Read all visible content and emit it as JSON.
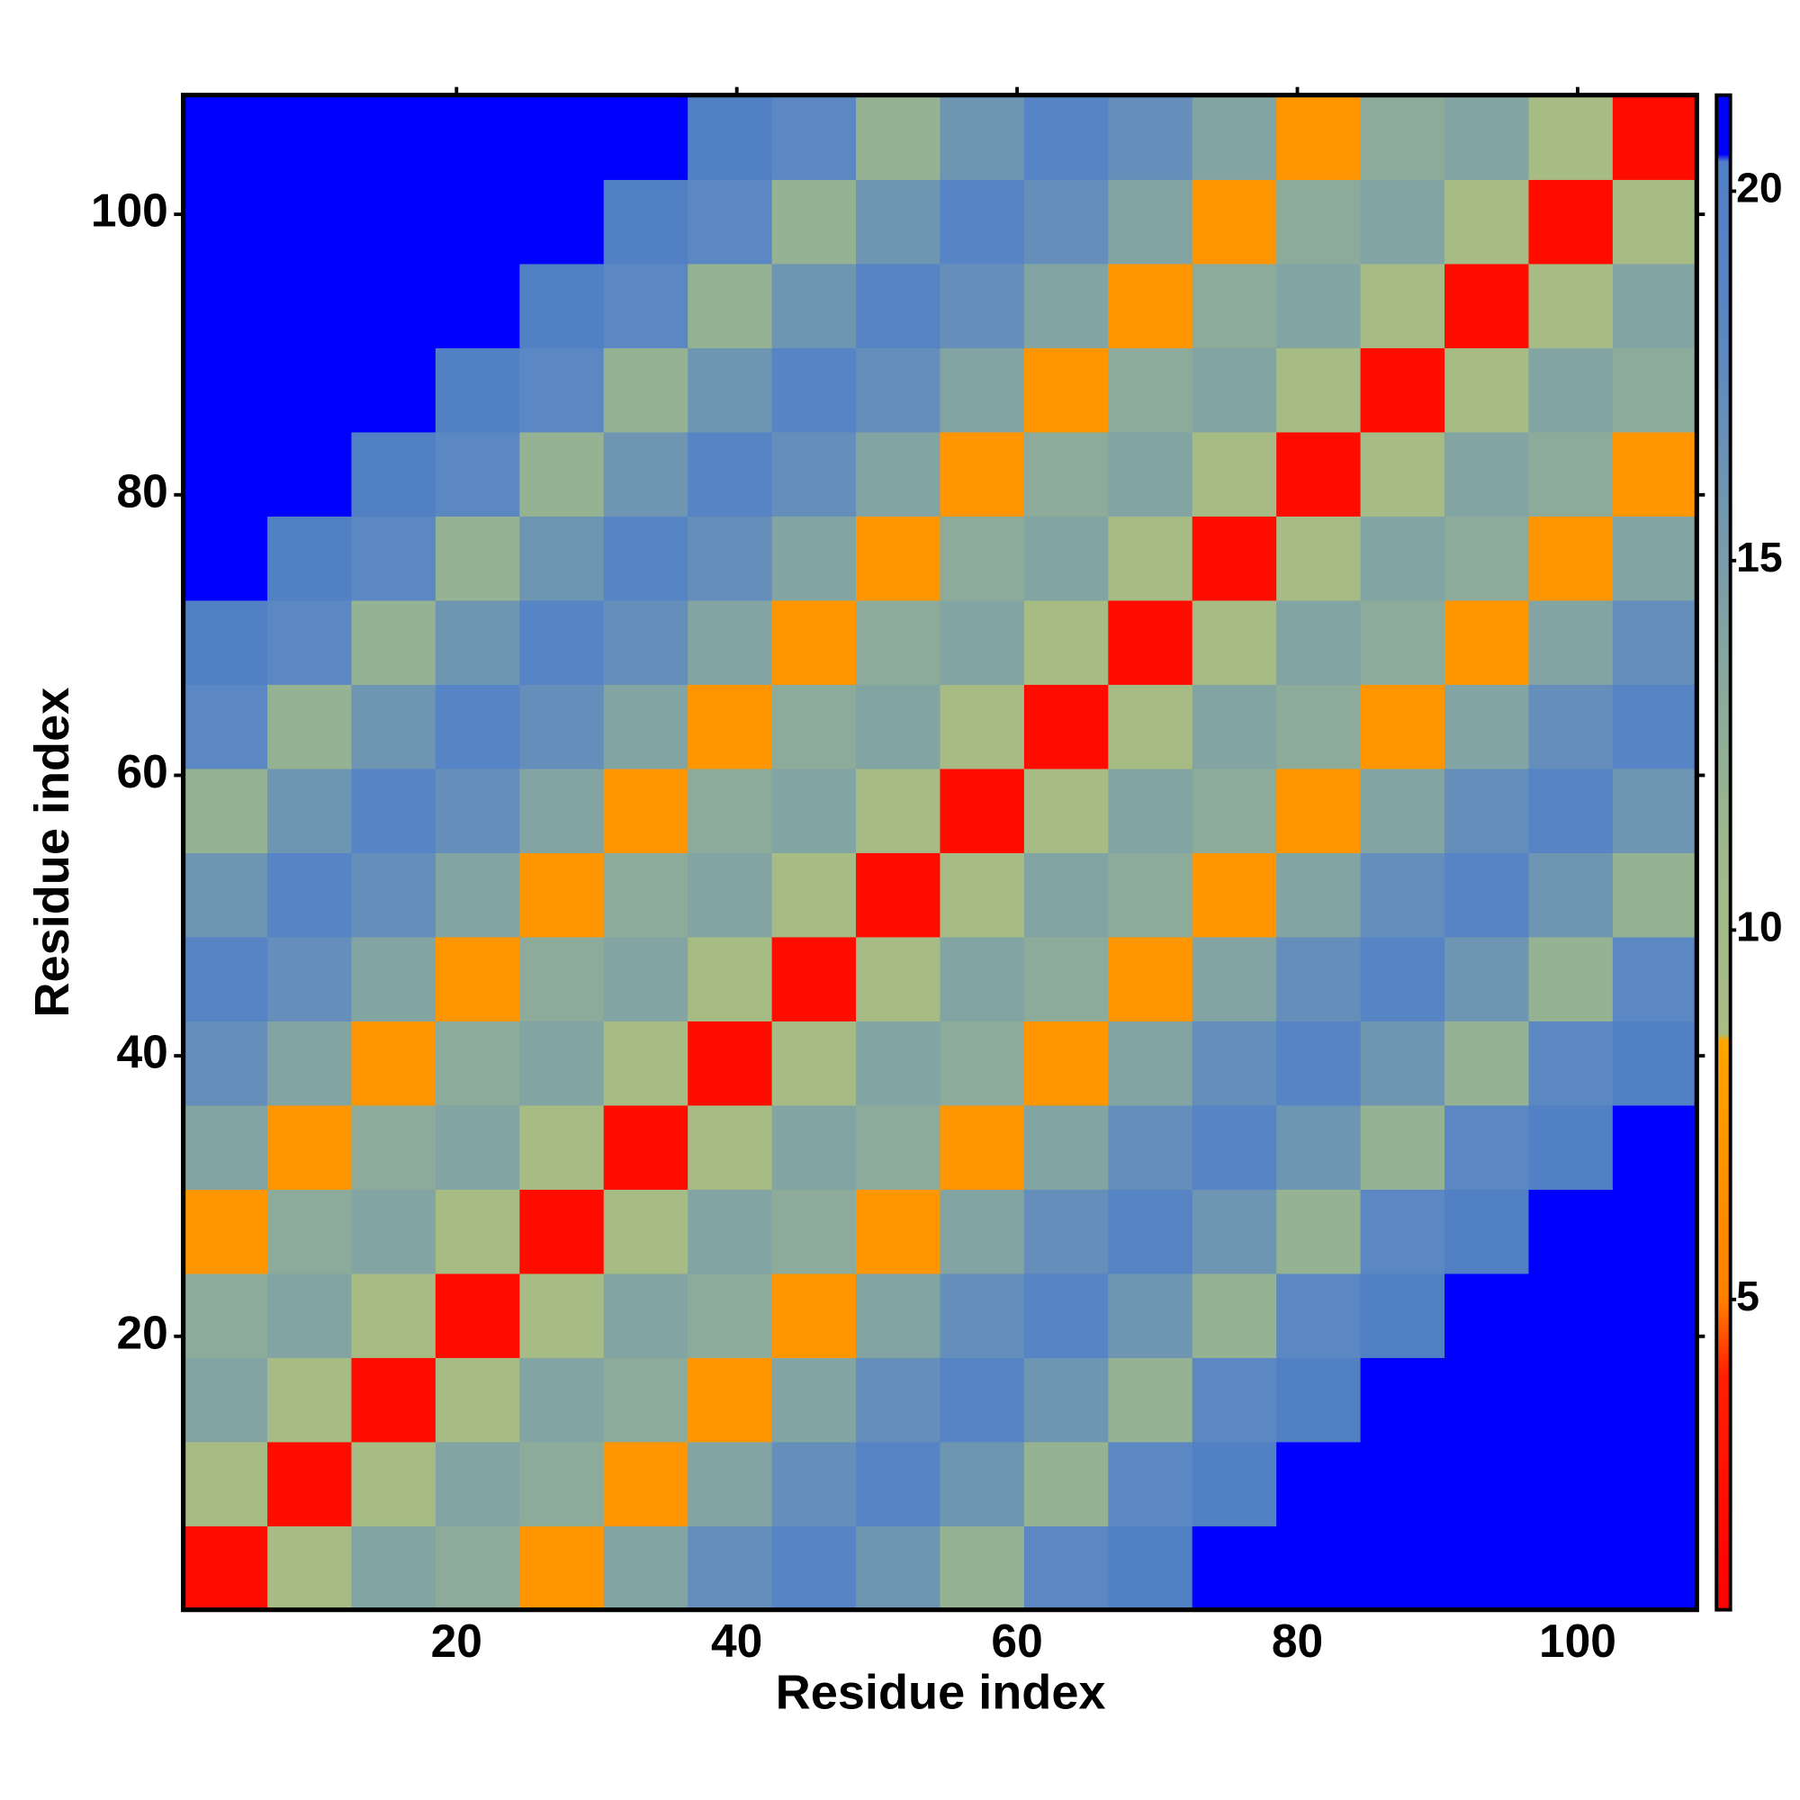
{
  "chart_data": {
    "type": "heatmap",
    "xlabel": "Residue index",
    "ylabel": "Residue index",
    "xlim": [
      0.5,
      108.5
    ],
    "ylim": [
      0.5,
      108.5
    ],
    "xticks": [
      20,
      40,
      60,
      80,
      100
    ],
    "yticks": [
      20,
      40,
      60,
      80,
      100
    ],
    "xbins": [
      0.5,
      6.5,
      12.5,
      18.5,
      24.5,
      30.5,
      36.5,
      42.5,
      48.5,
      54.5,
      60.5,
      66.5,
      72.5,
      78.5,
      84.5,
      90.5,
      96.5,
      102.5,
      108.5
    ],
    "ybins": [
      0.5,
      6.5,
      12.5,
      18.5,
      24.5,
      30.5,
      36.5,
      42.5,
      48.5,
      54.5,
      60.5,
      66.5,
      72.5,
      78.5,
      84.5,
      90.5,
      96.5,
      102.5,
      108.5
    ],
    "values": [
      [
        2,
        9,
        14,
        13,
        7,
        14,
        17,
        19,
        16,
        12,
        18,
        20,
        21,
        21,
        21,
        21,
        21,
        21
      ],
      [
        9,
        2,
        9,
        14,
        13,
        7,
        14,
        17,
        19,
        16,
        12,
        18,
        20,
        21,
        21,
        21,
        21,
        21
      ],
      [
        14,
        9,
        2,
        9,
        14,
        13,
        7,
        14,
        17,
        19,
        16,
        12,
        18,
        20,
        21,
        21,
        21,
        21
      ],
      [
        13,
        14,
        9,
        2,
        9,
        14,
        13,
        7,
        14,
        17,
        19,
        16,
        12,
        18,
        20,
        21,
        21,
        21
      ],
      [
        7,
        13,
        14,
        9,
        2,
        9,
        14,
        13,
        7,
        14,
        17,
        19,
        16,
        12,
        18,
        20,
        21,
        21
      ],
      [
        14,
        7,
        13,
        14,
        9,
        2,
        9,
        14,
        13,
        7,
        14,
        17,
        19,
        16,
        12,
        18,
        20,
        21
      ],
      [
        17,
        14,
        7,
        13,
        14,
        9,
        2,
        9,
        14,
        13,
        7,
        14,
        17,
        19,
        16,
        12,
        18,
        20
      ],
      [
        19,
        17,
        14,
        7,
        13,
        14,
        9,
        2,
        9,
        14,
        13,
        7,
        14,
        17,
        19,
        16,
        12,
        18
      ],
      [
        16,
        19,
        17,
        14,
        7,
        13,
        14,
        9,
        2,
        9,
        14,
        13,
        7,
        14,
        17,
        19,
        16,
        12
      ],
      [
        12,
        16,
        19,
        17,
        14,
        7,
        13,
        14,
        9,
        2,
        9,
        14,
        13,
        7,
        14,
        17,
        19,
        16
      ],
      [
        18,
        12,
        16,
        19,
        17,
        14,
        7,
        13,
        14,
        9,
        2,
        9,
        14,
        13,
        7,
        14,
        17,
        19
      ],
      [
        20,
        18,
        12,
        16,
        19,
        17,
        14,
        7,
        13,
        14,
        9,
        2,
        9,
        14,
        13,
        7,
        14,
        17
      ],
      [
        21,
        20,
        18,
        12,
        16,
        19,
        17,
        14,
        7,
        13,
        14,
        9,
        2,
        9,
        14,
        13,
        7,
        14
      ],
      [
        21,
        21,
        20,
        18,
        12,
        16,
        19,
        17,
        14,
        7,
        13,
        14,
        9,
        2,
        9,
        14,
        13,
        7
      ],
      [
        21,
        21,
        21,
        20,
        18,
        12,
        16,
        19,
        17,
        14,
        7,
        13,
        14,
        9,
        2,
        9,
        14,
        13
      ],
      [
        21,
        21,
        21,
        21,
        20,
        18,
        12,
        16,
        19,
        17,
        14,
        7,
        13,
        14,
        9,
        2,
        9,
        14
      ],
      [
        21,
        21,
        21,
        21,
        21,
        20,
        18,
        12,
        16,
        19,
        17,
        14,
        7,
        13,
        14,
        9,
        2,
        9
      ],
      [
        21,
        21,
        21,
        21,
        21,
        21,
        20,
        18,
        12,
        16,
        19,
        17,
        14,
        7,
        13,
        14,
        9,
        2
      ]
    ],
    "clim": [
      0.8,
      21.3
    ],
    "cticks": [
      5,
      10,
      15,
      20
    ],
    "colorscale": [
      [
        0.8,
        "#ff0000"
      ],
      [
        4,
        "#ff2000"
      ],
      [
        5,
        "#ff8000"
      ],
      [
        8.5,
        "#ffa500"
      ],
      [
        8.6,
        "#a8bc84"
      ],
      [
        11,
        "#9fb98a"
      ],
      [
        18,
        "#5b87c2"
      ],
      [
        20.4,
        "#4f7fc6"
      ],
      [
        20.5,
        "#0000ff"
      ],
      [
        21.3,
        "#0000ff"
      ]
    ]
  }
}
